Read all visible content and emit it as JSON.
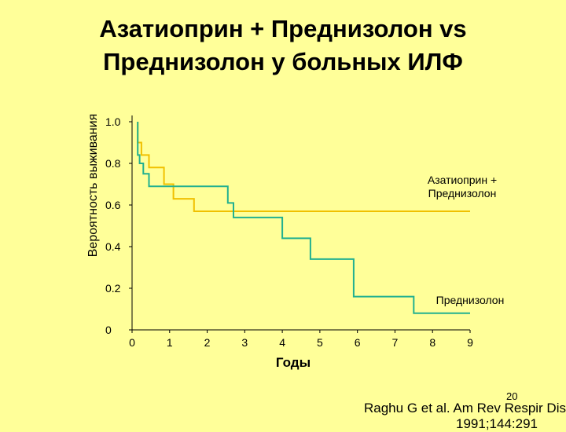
{
  "title_line1": "Азатиоприн + Преднизолон vs",
  "title_line2": "Преднизолон у больных ИЛФ",
  "page_number": "20",
  "citation_line1": "Raghu G et al. Am Rev Respir Dis.",
  "citation_line2": "1991;144:291",
  "chart_data": {
    "type": "line",
    "step": true,
    "xlabel": "Годы",
    "ylabel": "Вероятность выживания",
    "xlim": [
      0,
      9
    ],
    "ylim": [
      0,
      1.0
    ],
    "xticks": [
      "0",
      "1",
      "2",
      "3",
      "4",
      "5",
      "6",
      "7",
      "8",
      "9"
    ],
    "yticks": [
      "0",
      "0.2",
      "0.4",
      "0.6",
      "0.8",
      "1.0"
    ],
    "grid": false,
    "series": [
      {
        "name": "Азатиоприн + Преднизолон",
        "name_lines": [
          "Азатиоприн +",
          "Преднизолон"
        ],
        "color": "#f0c000",
        "points": [
          [
            0.15,
            1.0
          ],
          [
            0.15,
            0.9
          ],
          [
            0.25,
            0.9
          ],
          [
            0.25,
            0.84
          ],
          [
            0.45,
            0.84
          ],
          [
            0.45,
            0.78
          ],
          [
            0.85,
            0.78
          ],
          [
            0.85,
            0.7
          ],
          [
            1.1,
            0.7
          ],
          [
            1.1,
            0.63
          ],
          [
            1.4,
            0.63
          ],
          [
            1.4,
            0.63
          ],
          [
            1.65,
            0.63
          ],
          [
            1.65,
            0.57
          ],
          [
            9.0,
            0.57
          ]
        ]
      },
      {
        "name": "Преднизолон",
        "name_lines": [
          "Преднизолон"
        ],
        "color": "#22b090",
        "points": [
          [
            0.15,
            1.0
          ],
          [
            0.15,
            0.84
          ],
          [
            0.2,
            0.84
          ],
          [
            0.2,
            0.8
          ],
          [
            0.3,
            0.8
          ],
          [
            0.3,
            0.75
          ],
          [
            0.45,
            0.75
          ],
          [
            0.45,
            0.69
          ],
          [
            2.55,
            0.69
          ],
          [
            2.55,
            0.61
          ],
          [
            2.7,
            0.61
          ],
          [
            2.7,
            0.54
          ],
          [
            4.0,
            0.54
          ],
          [
            4.0,
            0.44
          ],
          [
            4.75,
            0.44
          ],
          [
            4.75,
            0.34
          ],
          [
            5.9,
            0.34
          ],
          [
            5.9,
            0.16
          ],
          [
            7.5,
            0.16
          ],
          [
            7.5,
            0.08
          ],
          [
            9.0,
            0.08
          ]
        ]
      }
    ]
  }
}
